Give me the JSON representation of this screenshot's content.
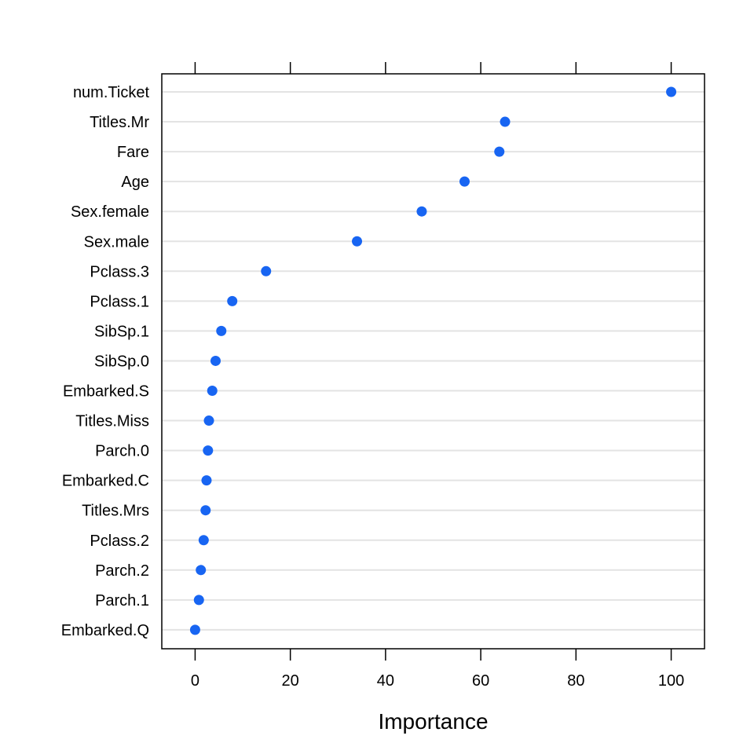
{
  "chart_data": {
    "type": "scatter",
    "title": "",
    "xlabel": "Importance",
    "ylabel": "",
    "xlim": [
      -7,
      107
    ],
    "xticks": [
      0,
      20,
      40,
      60,
      80,
      100
    ],
    "grid": "horizontal",
    "point_color": "#1865f2",
    "categories": [
      "num.Ticket",
      "Titles.Mr",
      "Fare",
      "Age",
      "Sex.female",
      "Sex.male",
      "Pclass.3",
      "Pclass.1",
      "SibSp.1",
      "SibSp.0",
      "Embarked.S",
      "Titles.Miss",
      "Parch.0",
      "Embarked.C",
      "Titles.Mrs",
      "Pclass.2",
      "Parch.2",
      "Parch.1",
      "Embarked.Q"
    ],
    "values": [
      100,
      65.1,
      63.9,
      56.6,
      47.6,
      34.0,
      14.9,
      7.8,
      5.5,
      4.3,
      3.6,
      2.9,
      2.7,
      2.4,
      2.2,
      1.8,
      1.2,
      0.8,
      0
    ]
  }
}
